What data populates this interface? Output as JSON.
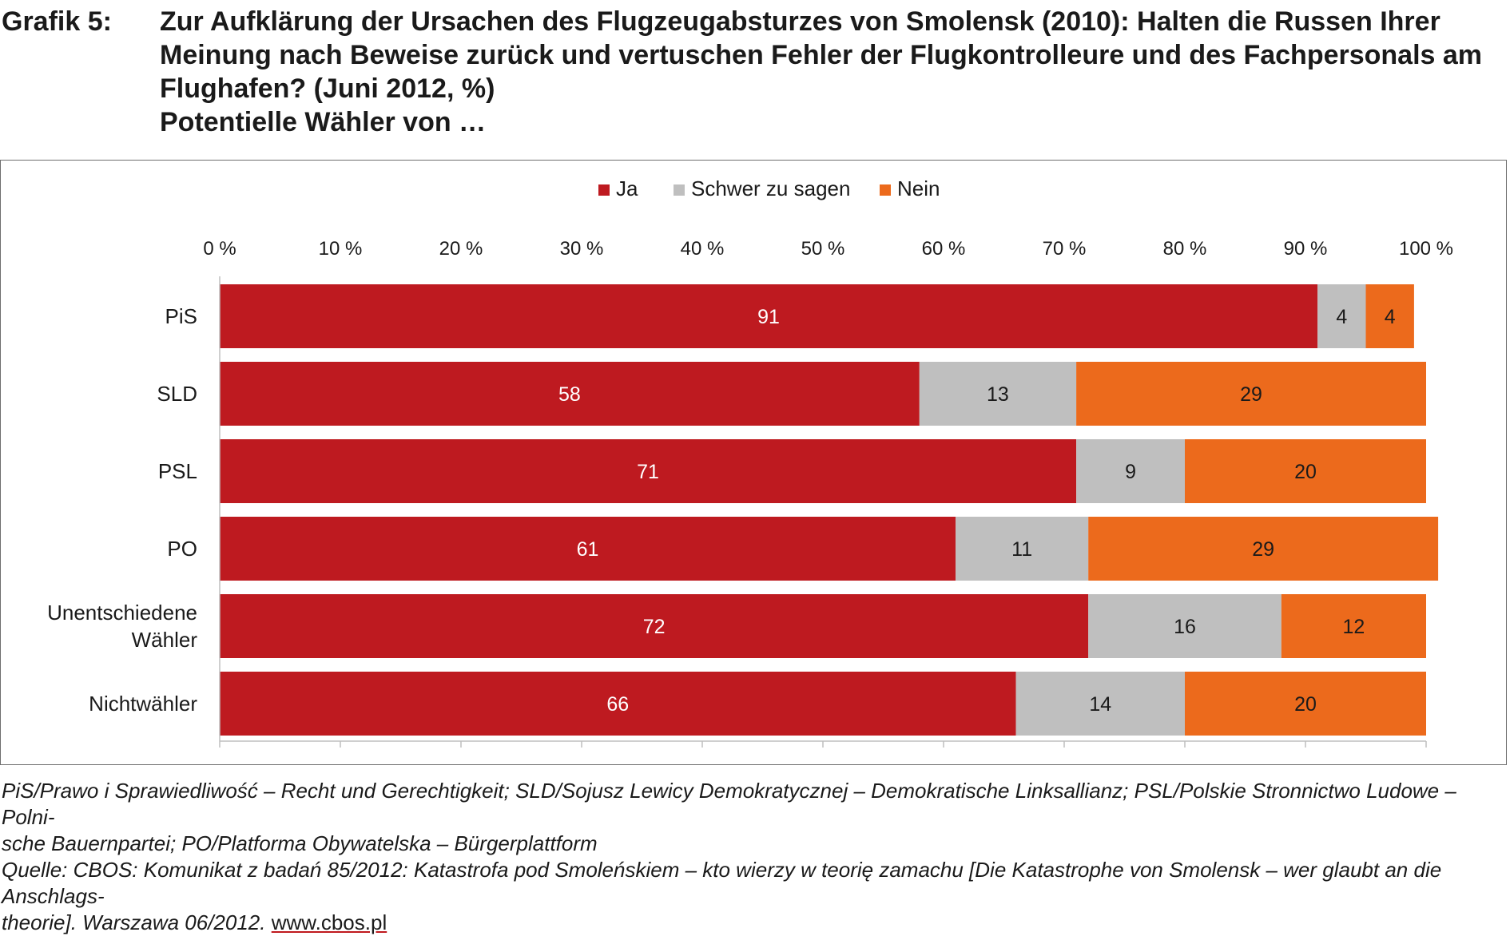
{
  "header": {
    "label": "Grafik 5:",
    "title_lines": [
      "Zur Aufklärung der Ursachen des Flugzeugabsturzes von Smolensk (2010): Halten die Russen Ihrer",
      "Meinung nach Beweise zurück und vertuschen Fehler der Flugkontrolleure und des Fachpersonals am",
      "Flughafen? (Juni 2012, %)",
      "Potentielle Wähler von …"
    ]
  },
  "chart_data": {
    "type": "bar",
    "orientation": "horizontal",
    "stacked": true,
    "categories": [
      "PiS",
      "SLD",
      "PSL",
      "PO",
      "Unentschiedene Wähler",
      "Nichtwähler"
    ],
    "category_lines": [
      [
        "PiS"
      ],
      [
        "SLD"
      ],
      [
        "PSL"
      ],
      [
        "PO"
      ],
      [
        "Unentschiedene",
        "Wähler"
      ],
      [
        "Nichtwähler"
      ]
    ],
    "series": [
      {
        "name": "Ja",
        "color": "#be1a20",
        "label_color": "#ffffff",
        "values": [
          91,
          58,
          71,
          61,
          72,
          66
        ]
      },
      {
        "name": "Schwer zu sagen",
        "color": "#bfbfbf",
        "label_color": "#1a1a1a",
        "values": [
          4,
          13,
          9,
          11,
          16,
          14
        ]
      },
      {
        "name": "Nein",
        "color": "#ec6a1c",
        "label_color": "#1a1a1a",
        "values": [
          4,
          29,
          20,
          29,
          12,
          20
        ]
      }
    ],
    "xlim": [
      0,
      100
    ],
    "xticks": [
      "0 %",
      "10 %",
      "20 %",
      "30 %",
      "40 %",
      "50 %",
      "60 %",
      "70 %",
      "80 %",
      "90 %",
      "100 %"
    ],
    "legend_position": "top-center",
    "grid": false
  },
  "footnote": {
    "line1": "PiS/Prawo i Sprawiedliwość – Recht und Gerechtigkeit; SLD/Sojusz Lewicy Demokratycznej – Demokratische Linksallianz; PSL/Polskie Stronnictwo Ludowe – Polni-",
    "line2": "sche Bauernpartei; PO/Platforma Obywatelska – Bürgerplattform",
    "line3": "Quelle: CBOS: Komunikat z badań 85/2012: Katastrofa pod Smoleńskiem – kto wierzy w teorię zamachu [Die Katastrophe von Smolensk – wer glaubt an die Anschlags-",
    "line4_prefix": "theorie]. Warszawa 06/2012. ",
    "url": "www.cbos.pl"
  }
}
